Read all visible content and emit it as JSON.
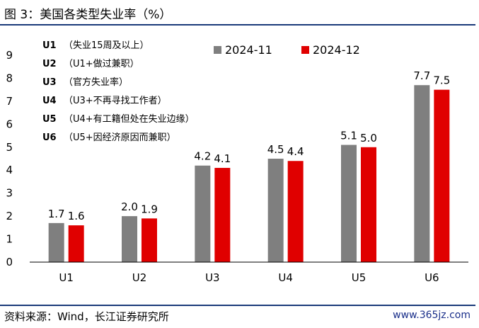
{
  "title": "图 3：美国各类型失业率（%）",
  "source": "资料来源：Wind，长江证券研究所",
  "watermark": "www.365jz.com",
  "notes": [
    {
      "code": "U1",
      "text": "（失业15周及以上）"
    },
    {
      "code": "U2",
      "text": "（U1+做过兼职）"
    },
    {
      "code": "U3",
      "text": "（官方失业率）"
    },
    {
      "code": "U4",
      "text": "（U3+不再寻找工作者）"
    },
    {
      "code": "U5",
      "text": "（U4+有工籍但处在失业边缘）"
    },
    {
      "code": "U6",
      "text": "（U5+因经济原因而兼职）"
    }
  ],
  "chart_data": {
    "type": "bar",
    "title": "",
    "xlabel": "",
    "ylabel": "",
    "categories": [
      "U1",
      "U2",
      "U3",
      "U4",
      "U5",
      "U6"
    ],
    "series": [
      {
        "name": "2024-11",
        "values": [
          1.7,
          2.0,
          4.2,
          4.5,
          5.1,
          7.7
        ],
        "labels": [
          "1.7",
          "2.0",
          "4.2",
          "4.5",
          "5.1",
          "7.7"
        ],
        "color": "#7f7f7f"
      },
      {
        "name": "2024-12",
        "values": [
          1.6,
          1.9,
          4.1,
          4.4,
          5.0,
          7.5
        ],
        "labels": [
          "1.6",
          "1.9",
          "4.1",
          "4.4",
          "5.0",
          "7.5"
        ],
        "color": "#e00000"
      }
    ],
    "ylim": [
      0,
      9
    ],
    "yticks": [
      "0",
      "1",
      "2",
      "3",
      "4",
      "5",
      "6",
      "7",
      "8",
      "9"
    ],
    "grid": false,
    "legend": "top-right"
  }
}
